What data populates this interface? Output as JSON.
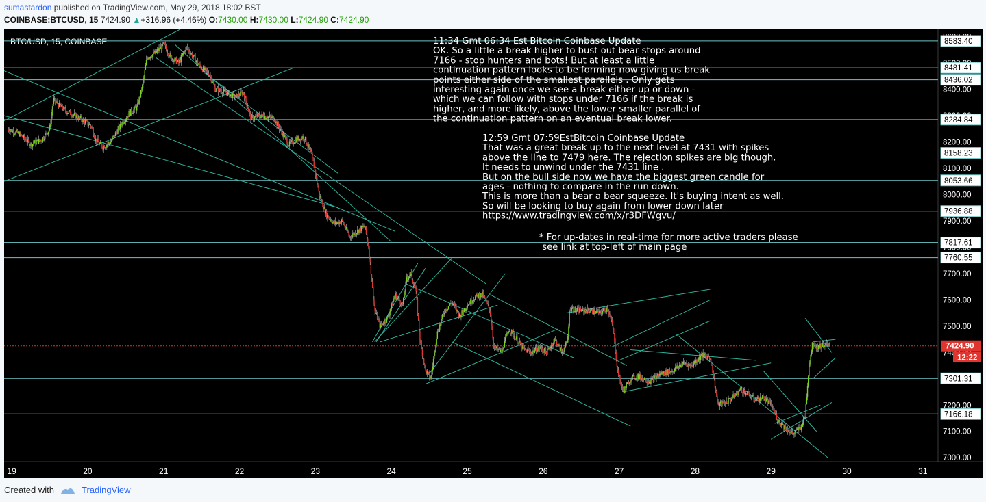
{
  "header": {
    "author": "sumastardon",
    "published": "published on TradingView.com, May 29, 2018 18:02 BST",
    "symbol_line": "COINBASE:BTCUSD, 15",
    "price": "7424.90",
    "change": "+316.96 (+4.46%)",
    "o_label": "O:",
    "o_value": "7430.00",
    "h_label": "H:",
    "h_value": "7430.00",
    "l_label": "L:",
    "l_value": "7424.90",
    "c_label": "C:",
    "c_value": "7424.90"
  },
  "footer": {
    "created_with": "Created with",
    "brand": "TradingView"
  },
  "colors": {
    "background": "#000000",
    "candle_up": "#7bd21b",
    "candle_down": "#e0342e",
    "hline": "#6fc4c4",
    "trendline": "#2fb39a",
    "current_price": "#e0342e",
    "scale_label_bg": "#ffffff"
  },
  "chart_data": {
    "type": "candlestick",
    "title": "BTC/USD, 15, COINBASE",
    "x_tick_labels": [
      "19",
      "20",
      "21",
      "22",
      "23",
      "24",
      "25",
      "26",
      "27",
      "28",
      "29",
      "30",
      "31"
    ],
    "y_tick_values": [
      7000,
      7100,
      7200,
      7300,
      7400,
      7500,
      7600,
      7700,
      7800,
      7900,
      8000,
      8100,
      8200,
      8300,
      8400,
      8500,
      8600
    ],
    "ylim": [
      6985,
      8630
    ],
    "xlim": [
      18.9,
      31.2
    ],
    "horizontal_levels": [
      8583.4,
      8481.41,
      8436.02,
      8284.84,
      8158.23,
      8053.66,
      7936.88,
      7817.61,
      7760.55,
      7301.31,
      7166.18
    ],
    "current_price": 7424.9,
    "countdown": "12:22",
    "path": [
      [
        18.95,
        8250
      ],
      [
        19.1,
        8230
      ],
      [
        19.25,
        8190
      ],
      [
        19.4,
        8210
      ],
      [
        19.5,
        8250
      ],
      [
        19.55,
        8360
      ],
      [
        19.7,
        8320
      ],
      [
        19.9,
        8290
      ],
      [
        20.05,
        8260
      ],
      [
        20.1,
        8210
      ],
      [
        20.2,
        8180
      ],
      [
        20.3,
        8200
      ],
      [
        20.45,
        8270
      ],
      [
        20.55,
        8310
      ],
      [
        20.65,
        8330
      ],
      [
        20.72,
        8410
      ],
      [
        20.78,
        8520
      ],
      [
        20.9,
        8540
      ],
      [
        21.0,
        8570
      ],
      [
        21.1,
        8520
      ],
      [
        21.2,
        8500
      ],
      [
        21.3,
        8560
      ],
      [
        21.4,
        8520
      ],
      [
        21.5,
        8480
      ],
      [
        21.6,
        8460
      ],
      [
        21.68,
        8400
      ],
      [
        21.8,
        8390
      ],
      [
        21.95,
        8370
      ],
      [
        22.05,
        8390
      ],
      [
        22.15,
        8290
      ],
      [
        22.3,
        8300
      ],
      [
        22.45,
        8290
      ],
      [
        22.55,
        8240
      ],
      [
        22.65,
        8190
      ],
      [
        22.75,
        8210
      ],
      [
        22.85,
        8220
      ],
      [
        22.95,
        8150
      ],
      [
        23.0,
        8080
      ],
      [
        23.05,
        8000
      ],
      [
        23.15,
        7920
      ],
      [
        23.25,
        7890
      ],
      [
        23.35,
        7900
      ],
      [
        23.45,
        7840
      ],
      [
        23.55,
        7860
      ],
      [
        23.65,
        7880
      ],
      [
        23.7,
        7800
      ],
      [
        23.78,
        7560
      ],
      [
        23.85,
        7500
      ],
      [
        23.95,
        7530
      ],
      [
        24.05,
        7620
      ],
      [
        24.15,
        7580
      ],
      [
        24.2,
        7680
      ],
      [
        24.25,
        7700
      ],
      [
        24.32,
        7640
      ],
      [
        24.38,
        7440
      ],
      [
        24.45,
        7330
      ],
      [
        24.52,
        7300
      ],
      [
        24.6,
        7470
      ],
      [
        24.7,
        7560
      ],
      [
        24.8,
        7590
      ],
      [
        24.9,
        7540
      ],
      [
        25.0,
        7580
      ],
      [
        25.1,
        7610
      ],
      [
        25.2,
        7620
      ],
      [
        25.3,
        7560
      ],
      [
        25.35,
        7420
      ],
      [
        25.45,
        7400
      ],
      [
        25.55,
        7490
      ],
      [
        25.65,
        7450
      ],
      [
        25.75,
        7410
      ],
      [
        25.85,
        7400
      ],
      [
        25.95,
        7420
      ],
      [
        26.05,
        7400
      ],
      [
        26.15,
        7450
      ],
      [
        26.25,
        7400
      ],
      [
        26.32,
        7440
      ],
      [
        26.35,
        7570
      ],
      [
        26.45,
        7560
      ],
      [
        26.6,
        7560
      ],
      [
        26.75,
        7550
      ],
      [
        26.85,
        7570
      ],
      [
        26.92,
        7490
      ],
      [
        26.98,
        7330
      ],
      [
        27.05,
        7250
      ],
      [
        27.15,
        7300
      ],
      [
        27.25,
        7310
      ],
      [
        27.4,
        7290
      ],
      [
        27.55,
        7320
      ],
      [
        27.7,
        7330
      ],
      [
        27.85,
        7360
      ],
      [
        27.95,
        7350
      ],
      [
        28.1,
        7390
      ],
      [
        28.2,
        7380
      ],
      [
        28.25,
        7300
      ],
      [
        28.3,
        7200
      ],
      [
        28.4,
        7210
      ],
      [
        28.5,
        7230
      ],
      [
        28.6,
        7260
      ],
      [
        28.7,
        7240
      ],
      [
        28.8,
        7220
      ],
      [
        28.9,
        7230
      ],
      [
        29.0,
        7200
      ],
      [
        29.1,
        7140
      ],
      [
        29.2,
        7110
      ],
      [
        29.3,
        7090
      ],
      [
        29.4,
        7120
      ],
      [
        29.45,
        7160
      ],
      [
        29.5,
        7350
      ],
      [
        29.55,
        7440
      ],
      [
        29.6,
        7420
      ],
      [
        29.7,
        7430
      ],
      [
        29.78,
        7424.9
      ]
    ],
    "trendlines": [
      [
        [
          18.9,
          8280
        ],
        [
          21.3,
          8640
        ]
      ],
      [
        [
          18.9,
          8050
        ],
        [
          22.7,
          8480
        ]
      ],
      [
        [
          18.9,
          8300
        ],
        [
          23.3,
          7950
        ]
      ],
      [
        [
          18.9,
          8470
        ],
        [
          24.05,
          7860
        ]
      ],
      [
        [
          20.9,
          8520
        ],
        [
          25.25,
          7660
        ]
      ],
      [
        [
          21.15,
          8570
        ],
        [
          24.0,
          7820
        ]
      ],
      [
        [
          21.55,
          8460
        ],
        [
          23.3,
          8080
        ]
      ],
      [
        [
          23.75,
          7440
        ],
        [
          24.35,
          7740
        ]
      ],
      [
        [
          23.78,
          7440
        ],
        [
          24.8,
          7760
        ]
      ],
      [
        [
          23.85,
          7440
        ],
        [
          25.4,
          7580
        ]
      ],
      [
        [
          23.8,
          7440
        ],
        [
          24.45,
          7720
        ]
      ],
      [
        [
          24.2,
          7660
        ],
        [
          26.4,
          7380
        ]
      ],
      [
        [
          24.45,
          7280
        ],
        [
          26.2,
          7490
        ]
      ],
      [
        [
          24.5,
          7320
        ],
        [
          25.5,
          7700
        ]
      ],
      [
        [
          24.8,
          7440
        ],
        [
          27.15,
          7120
        ]
      ],
      [
        [
          26.3,
          7550
        ],
        [
          28.2,
          7640
        ]
      ],
      [
        [
          25.3,
          7620
        ],
        [
          27.1,
          7350
        ]
      ],
      [
        [
          26.9,
          7420
        ],
        [
          28.2,
          7600
        ]
      ],
      [
        [
          27.0,
          7370
        ],
        [
          28.2,
          7520
        ]
      ],
      [
        [
          27.15,
          7410
        ],
        [
          28.8,
          7370
        ]
      ],
      [
        [
          27.05,
          7250
        ],
        [
          29.0,
          7360
        ]
      ],
      [
        [
          27.75,
          7470
        ],
        [
          29.75,
          7000
        ]
      ],
      [
        [
          28.9,
          7330
        ],
        [
          29.6,
          7100
        ]
      ],
      [
        [
          29.05,
          7130
        ],
        [
          29.65,
          7200
        ]
      ],
      [
        [
          29.0,
          7070
        ],
        [
          29.8,
          7210
        ]
      ],
      [
        [
          29.55,
          7440
        ],
        [
          29.85,
          7450
        ]
      ],
      [
        [
          29.55,
          7300
        ],
        [
          29.85,
          7380
        ]
      ],
      [
        [
          29.45,
          7530
        ],
        [
          29.8,
          7400
        ]
      ]
    ]
  }
}
